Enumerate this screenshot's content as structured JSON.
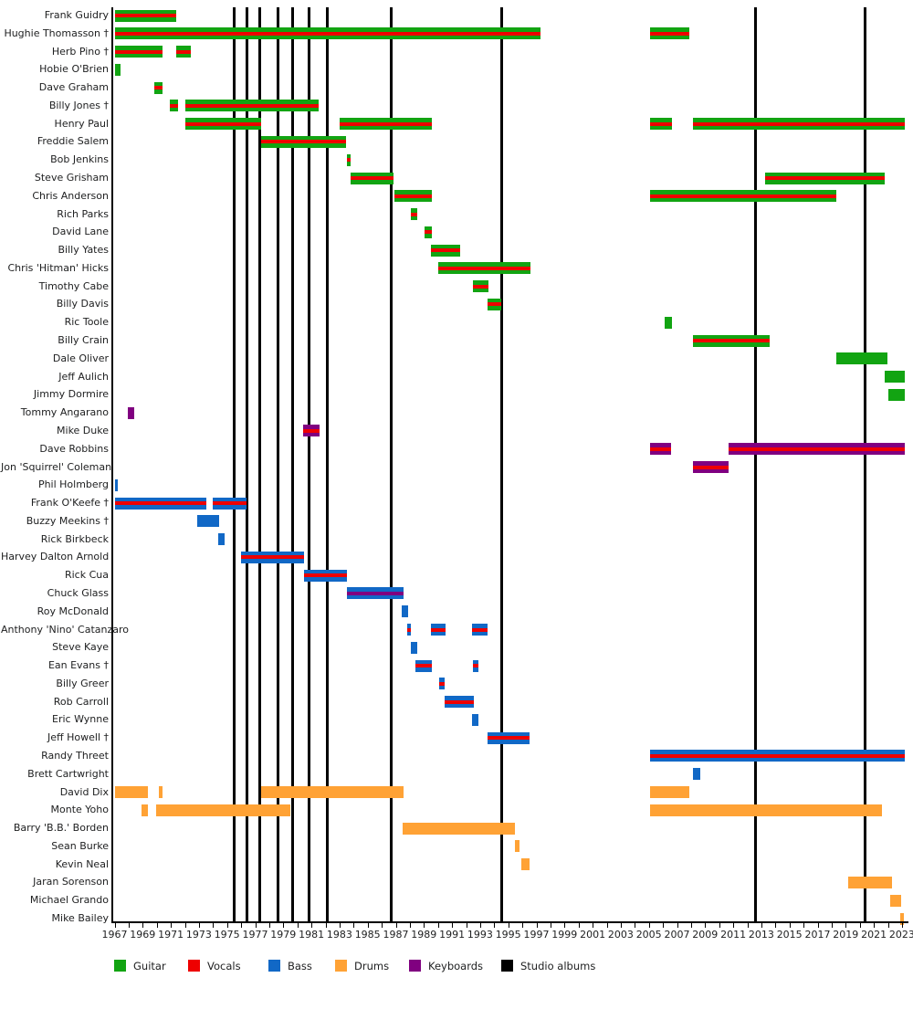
{
  "chart_data": {
    "type": "timeline",
    "title": "",
    "axis": {
      "min": 1967,
      "max": 2023.3,
      "tick_start": 1967,
      "tick_end": 2023,
      "tick_step": 1,
      "label_years": [
        1967,
        1969,
        1971,
        1973,
        1975,
        1977,
        1979,
        1981,
        1983,
        1985,
        1987,
        1989,
        1991,
        1993,
        1995,
        1997,
        1999,
        2001,
        2003,
        2005,
        2007,
        2009,
        2011,
        2013,
        2015,
        2017,
        2019,
        2021,
        2023
      ]
    },
    "colors": {
      "guitar": "#12a412",
      "vocals": "#ee0000",
      "bass": "#1168c6",
      "drums": "#ffa235",
      "keyboards": "#800080",
      "albums": "#000000"
    },
    "legend": [
      {
        "label": "Guitar",
        "role": "guitar"
      },
      {
        "label": "Vocals",
        "role": "vocals"
      },
      {
        "label": "Bass",
        "role": "bass"
      },
      {
        "label": "Drums",
        "role": "drums"
      },
      {
        "label": "Keyboards",
        "role": "keyboards"
      },
      {
        "label": "Studio albums",
        "role": "albums"
      }
    ],
    "albums": {
      "label": "Studio albums",
      "years": [
        1975.5,
        1976.4,
        1977.3,
        1978.6,
        1979.65,
        1980.8,
        1982.1,
        1986.7,
        1994.5,
        2012.6,
        2020.35
      ]
    },
    "members": [
      {
        "name": "Frank Guidry",
        "roles": [
          "guitar",
          "vocals"
        ],
        "stints": [
          [
            1967.0,
            1971.4
          ]
        ]
      },
      {
        "name": "Hughie Thomasson †",
        "roles": [
          "guitar",
          "vocals"
        ],
        "stints": [
          [
            1967.0,
            1997.3
          ],
          [
            2005.1,
            2007.9
          ]
        ]
      },
      {
        "name": "Herb Pino †",
        "roles": [
          "guitar",
          "vocals"
        ],
        "stints": [
          [
            1967.0,
            1970.4
          ],
          [
            1971.4,
            1972.45
          ]
        ]
      },
      {
        "name": "Hobie O'Brien",
        "roles": [
          "guitar"
        ],
        "stints": [
          [
            1967.0,
            1967.45
          ]
        ]
      },
      {
        "name": "Dave Graham",
        "roles": [
          "guitar",
          "vocals"
        ],
        "stints": [
          [
            1969.85,
            1970.4
          ]
        ]
      },
      {
        "name": "Billy Jones †",
        "roles": [
          "guitar",
          "vocals"
        ],
        "stints": [
          [
            1970.9,
            1971.5
          ],
          [
            1972.0,
            1981.5
          ]
        ]
      },
      {
        "name": "Henry Paul",
        "roles": [
          "guitar",
          "vocals"
        ],
        "stints": [
          [
            1972.0,
            1977.4
          ],
          [
            1983.0,
            1989.55
          ],
          [
            2005.1,
            2006.65
          ],
          [
            2008.15,
            2023.2
          ]
        ]
      },
      {
        "name": "Freddie Salem",
        "roles": [
          "guitar",
          "vocals"
        ],
        "stints": [
          [
            1977.4,
            1983.45
          ]
        ]
      },
      {
        "name": "Bob Jenkins",
        "roles": [
          "guitar",
          "vocals"
        ],
        "stints": [
          [
            1983.5,
            1983.8
          ]
        ]
      },
      {
        "name": "Steve Grisham",
        "roles": [
          "guitar",
          "vocals"
        ],
        "stints": [
          [
            1983.8,
            1986.85
          ],
          [
            2013.25,
            2021.75
          ]
        ]
      },
      {
        "name": "Chris Anderson",
        "roles": [
          "guitar",
          "vocals"
        ],
        "stints": [
          [
            1986.9,
            1989.55
          ],
          [
            2005.1,
            2018.35
          ]
        ]
      },
      {
        "name": "Rich Parks",
        "roles": [
          "guitar",
          "vocals"
        ],
        "stints": [
          [
            1988.05,
            1988.55
          ]
        ]
      },
      {
        "name": "David Lane",
        "roles": [
          "guitar",
          "vocals"
        ],
        "stints": [
          [
            1989.05,
            1989.55
          ]
        ]
      },
      {
        "name": "Billy Yates",
        "roles": [
          "guitar",
          "vocals"
        ],
        "stints": [
          [
            1989.5,
            1991.55
          ]
        ]
      },
      {
        "name": "Chris 'Hitman' Hicks",
        "roles": [
          "guitar",
          "vocals"
        ],
        "stints": [
          [
            1990.05,
            1996.55
          ]
        ]
      },
      {
        "name": "Timothy Cabe",
        "roles": [
          "guitar",
          "vocals"
        ],
        "stints": [
          [
            1992.5,
            1993.6
          ]
        ]
      },
      {
        "name": "Billy Davis",
        "roles": [
          "guitar",
          "vocals"
        ],
        "stints": [
          [
            1993.5,
            1994.5
          ]
        ]
      },
      {
        "name": "Ric Toole",
        "roles": [
          "guitar"
        ],
        "stints": [
          [
            2006.1,
            2006.65
          ]
        ]
      },
      {
        "name": "Billy Crain",
        "roles": [
          "guitar",
          "vocals"
        ],
        "stints": [
          [
            2008.15,
            2013.6
          ]
        ]
      },
      {
        "name": "Dale Oliver",
        "roles": [
          "guitar"
        ],
        "stints": [
          [
            2018.35,
            2021.95
          ]
        ]
      },
      {
        "name": "Jeff Aulich",
        "roles": [
          "guitar"
        ],
        "stints": [
          [
            2021.75,
            2023.2
          ]
        ]
      },
      {
        "name": "Jimmy Dormire",
        "roles": [
          "guitar"
        ],
        "stints": [
          [
            2022.0,
            2023.2
          ]
        ]
      },
      {
        "name": "Tommy Angarano",
        "roles": [
          "keyboards"
        ],
        "stints": [
          [
            1967.95,
            1968.4
          ]
        ]
      },
      {
        "name": "Mike Duke",
        "roles": [
          "keyboards",
          "vocals"
        ],
        "stints": [
          [
            1980.4,
            1981.6
          ]
        ]
      },
      {
        "name": "Dave Robbins",
        "roles": [
          "keyboards",
          "vocals"
        ],
        "stints": [
          [
            2005.1,
            2006.6
          ],
          [
            2010.65,
            2023.2
          ]
        ]
      },
      {
        "name": "Jon 'Squirrel' Coleman",
        "roles": [
          "keyboards",
          "vocals"
        ],
        "stints": [
          [
            2008.15,
            2010.7
          ]
        ]
      },
      {
        "name": "Phil Holmberg",
        "roles": [
          "bass"
        ],
        "stints": [
          [
            1967.0,
            1967.25
          ]
        ]
      },
      {
        "name": "Frank O'Keefe †",
        "roles": [
          "bass",
          "vocals"
        ],
        "stints": [
          [
            1967.05,
            1973.55
          ],
          [
            1974.0,
            1976.4
          ]
        ]
      },
      {
        "name": "Buzzy Meekins †",
        "roles": [
          "bass"
        ],
        "stints": [
          [
            1972.9,
            1974.45
          ]
        ]
      },
      {
        "name": "Rick Birkbeck",
        "roles": [
          "bass"
        ],
        "stints": [
          [
            1974.4,
            1974.85
          ]
        ]
      },
      {
        "name": "Harvey Dalton Arnold",
        "roles": [
          "bass",
          "vocals"
        ],
        "stints": [
          [
            1976.0,
            1980.45
          ]
        ]
      },
      {
        "name": "Rick Cua",
        "roles": [
          "bass",
          "vocals"
        ],
        "stints": [
          [
            1980.45,
            1983.55
          ]
        ]
      },
      {
        "name": "Chuck Glass",
        "roles": [
          "bass",
          "keyboards"
        ],
        "stints": [
          [
            1983.5,
            1987.55
          ]
        ]
      },
      {
        "name": "Roy McDonald",
        "roles": [
          "bass"
        ],
        "stints": [
          [
            1987.4,
            1987.85
          ]
        ]
      },
      {
        "name": "Anthony 'Nino' Catanzaro",
        "roles": [
          "bass",
          "vocals"
        ],
        "stints": [
          [
            1987.8,
            1988.05
          ],
          [
            1989.5,
            1990.55
          ],
          [
            1992.45,
            1993.55
          ]
        ]
      },
      {
        "name": "Steve Kaye",
        "roles": [
          "bass"
        ],
        "stints": [
          [
            1988.05,
            1988.5
          ]
        ]
      },
      {
        "name": "Ean Evans †",
        "roles": [
          "bass",
          "vocals"
        ],
        "stints": [
          [
            1988.4,
            1989.55
          ],
          [
            1992.5,
            1992.85
          ]
        ]
      },
      {
        "name": "Billy Greer",
        "roles": [
          "bass",
          "vocals"
        ],
        "stints": [
          [
            1990.1,
            1990.5
          ]
        ]
      },
      {
        "name": "Rob Carroll",
        "roles": [
          "bass",
          "vocals"
        ],
        "stints": [
          [
            1990.45,
            1992.55
          ]
        ]
      },
      {
        "name": "Eric Wynne",
        "roles": [
          "bass"
        ],
        "stints": [
          [
            1992.45,
            1992.85
          ]
        ]
      },
      {
        "name": "Jeff Howell †",
        "roles": [
          "bass",
          "vocals"
        ],
        "stints": [
          [
            1993.5,
            1996.5
          ]
        ]
      },
      {
        "name": "Randy Threet",
        "roles": [
          "bass",
          "vocals"
        ],
        "stints": [
          [
            2005.1,
            2023.2
          ]
        ]
      },
      {
        "name": "Brett Cartwright",
        "roles": [
          "bass"
        ],
        "stints": [
          [
            2008.15,
            2008.65
          ]
        ]
      },
      {
        "name": "David Dix",
        "roles": [
          "drums"
        ],
        "stints": [
          [
            1967.0,
            1969.4
          ],
          [
            1970.15,
            1970.4
          ],
          [
            1977.4,
            1987.55
          ],
          [
            2005.1,
            2007.9
          ]
        ]
      },
      {
        "name": "Monte Yoho",
        "roles": [
          "drums"
        ],
        "stints": [
          [
            1968.9,
            1969.4
          ],
          [
            1969.95,
            1979.5
          ],
          [
            2005.1,
            2021.6
          ]
        ]
      },
      {
        "name": "Barry 'B.B.' Borden",
        "roles": [
          "drums"
        ],
        "stints": [
          [
            1987.5,
            1995.45
          ]
        ]
      },
      {
        "name": "Sean Burke",
        "roles": [
          "drums"
        ],
        "stints": [
          [
            1995.5,
            1995.8
          ]
        ]
      },
      {
        "name": "Kevin Neal",
        "roles": [
          "drums"
        ],
        "stints": [
          [
            1995.9,
            1996.5
          ]
        ]
      },
      {
        "name": "Jaran Sorenson",
        "roles": [
          "drums"
        ],
        "stints": [
          [
            2019.2,
            2022.3
          ]
        ]
      },
      {
        "name": "Michael Grando",
        "roles": [
          "drums"
        ],
        "stints": [
          [
            2022.15,
            2022.95
          ]
        ]
      },
      {
        "name": "Mike Bailey",
        "roles": [
          "drums"
        ],
        "stints": [
          [
            2022.9,
            2023.15
          ]
        ]
      }
    ]
  }
}
